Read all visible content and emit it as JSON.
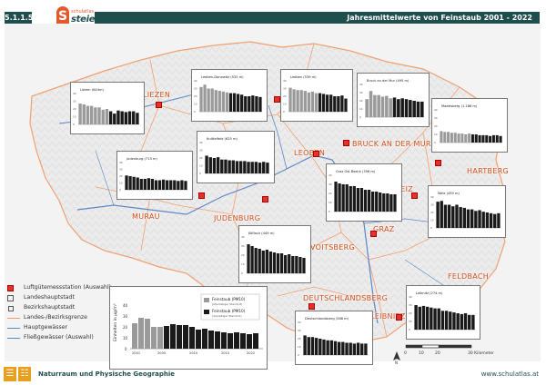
{
  "header": {
    "code": "5.1.1.5",
    "logo_small": "schulatlas",
    "logo_main": "steiermark",
    "title": "Jahresmittelwerte von Feinstaub 2001 - 2022"
  },
  "footer": {
    "left": "Naturraum und Physische Geographie",
    "right": "www.schulatlas.at"
  },
  "colors": {
    "brand": "#1f4e4e",
    "accent": "#e05a2a",
    "station": "#e8302a",
    "border_orange": "#f0a070",
    "river_blue": "#5b88c8",
    "bar_grey": "#9a9a9a",
    "bar_black": "#1a1a1a"
  },
  "places": [
    {
      "name": "LIEZEN"
    },
    {
      "name": "MURAU"
    },
    {
      "name": "JUDENBURG"
    },
    {
      "name": "LEOBEN"
    },
    {
      "name": "BRUCK AN DER MUR"
    },
    {
      "name": "HARTBERG"
    },
    {
      "name": "WEIZ"
    },
    {
      "name": "GRAZ"
    },
    {
      "name": "VOITSBERG"
    },
    {
      "name": "DEUTSCHLANDSBERG"
    },
    {
      "name": "LEIBNITZ"
    },
    {
      "name": "FELDBACH"
    }
  ],
  "legend": {
    "items": [
      {
        "label": "Luftgütemessstation (Auswahl)",
        "icon": "station-square"
      },
      {
        "label": "Landeshauptstadt",
        "icon": "square-outline"
      },
      {
        "label": "Bezirkshauptstadt",
        "icon": "square-outline-small"
      },
      {
        "label": "Landes-/Bezirksgrenze",
        "icon": "orange-line"
      },
      {
        "label": "Hauptgewässer",
        "icon": "blue-line"
      },
      {
        "label": "Fließgewässer (Auswahl)",
        "icon": "thin-blue-line"
      }
    ]
  },
  "big_chart": {
    "ylabel": "Einheiten in µg/m³",
    "legend_grey": "Feinstaub (PM10)",
    "legend_grey_note": "(ehemaliger Standort)",
    "legend_black": "Feinstaub (PM10)",
    "legend_black_note": "(derzeitiger Standort)",
    "ticks_y": [
      "0",
      "10",
      "20",
      "30",
      "40"
    ],
    "ticks_x": [
      "2001",
      "2005",
      "2010",
      "2015",
      "2020",
      "2022"
    ]
  },
  "scale": {
    "labels": [
      "0",
      "10",
      "20",
      "30 Kilometer"
    ],
    "north": "N"
  },
  "chart_data": [
    {
      "type": "bar",
      "title": "Liezen (644m)",
      "values": [
        27,
        26,
        24,
        24,
        22,
        22,
        19,
        20,
        17,
        14,
        18,
        17,
        16,
        17,
        17,
        15
      ]
    },
    {
      "type": "bar",
      "title": "Leoben-Donawitz (535 m)",
      "values": [
        32,
        35,
        30,
        30,
        28,
        27,
        26,
        25,
        24,
        24,
        23,
        22,
        20,
        20,
        21,
        20,
        19
      ]
    },
    {
      "type": "bar",
      "title": "Leoben (539 m)",
      "values": [
        31,
        29,
        28,
        28,
        27,
        25,
        26,
        24,
        24,
        23,
        22,
        22,
        20,
        20,
        21,
        17
      ]
    },
    {
      "type": "bar",
      "title": "Bruck an der Mur (495 m)",
      "values": [
        22,
        32,
        27,
        27,
        25,
        26,
        23,
        24,
        22,
        23,
        22,
        21,
        20,
        19,
        19
      ]
    },
    {
      "type": "bar",
      "title": "Mazelsberg (1.186 m)",
      "values": [
        14,
        13,
        13,
        12,
        12,
        11,
        11,
        10,
        11,
        10,
        10,
        9,
        9,
        9,
        8,
        9,
        9,
        8
      ]
    },
    {
      "type": "bar",
      "title": "Judenburg (713 m)",
      "values": [
        21,
        20,
        19,
        18,
        16,
        16,
        17,
        16,
        14,
        14,
        15,
        14,
        14,
        14,
        13,
        14,
        13
      ]
    },
    {
      "type": "bar",
      "title": "Knittelfeld (625 m)",
      "values": [
        23,
        21,
        20,
        21,
        18,
        18,
        17,
        17,
        16,
        16,
        16,
        15,
        15,
        15,
        14,
        15,
        14
      ]
    },
    {
      "type": "bar",
      "title": "Graz Ost Bezirk (356 m)",
      "values": [
        33,
        31,
        30,
        30,
        28,
        28,
        26,
        26,
        24,
        24,
        22,
        22,
        21,
        20,
        20,
        19,
        19
      ]
    },
    {
      "type": "bar",
      "title": "Weiz (459 m)",
      "values": [
        34,
        35,
        30,
        30,
        28,
        30,
        27,
        26,
        24,
        24,
        22,
        23,
        21,
        20,
        19,
        18,
        19
      ]
    },
    {
      "type": "bar",
      "title": "Köflach (449 m)",
      "values": [
        32,
        30,
        28,
        27,
        25,
        26,
        24,
        23,
        22,
        22,
        20,
        21,
        19,
        19,
        18,
        17
      ]
    },
    {
      "type": "bar",
      "title": "Leibnitz (274 m)",
      "values": [
        30,
        28,
        29,
        28,
        27,
        26,
        26,
        23,
        23,
        22,
        21,
        20,
        19,
        20,
        18,
        18
      ]
    },
    {
      "type": "bar",
      "title": "Deutschlandsberg (368 m)",
      "values": [
        24,
        22,
        22,
        21,
        20,
        19,
        18,
        18,
        17,
        16,
        16,
        15,
        15,
        14,
        15,
        14,
        14
      ]
    }
  ]
}
